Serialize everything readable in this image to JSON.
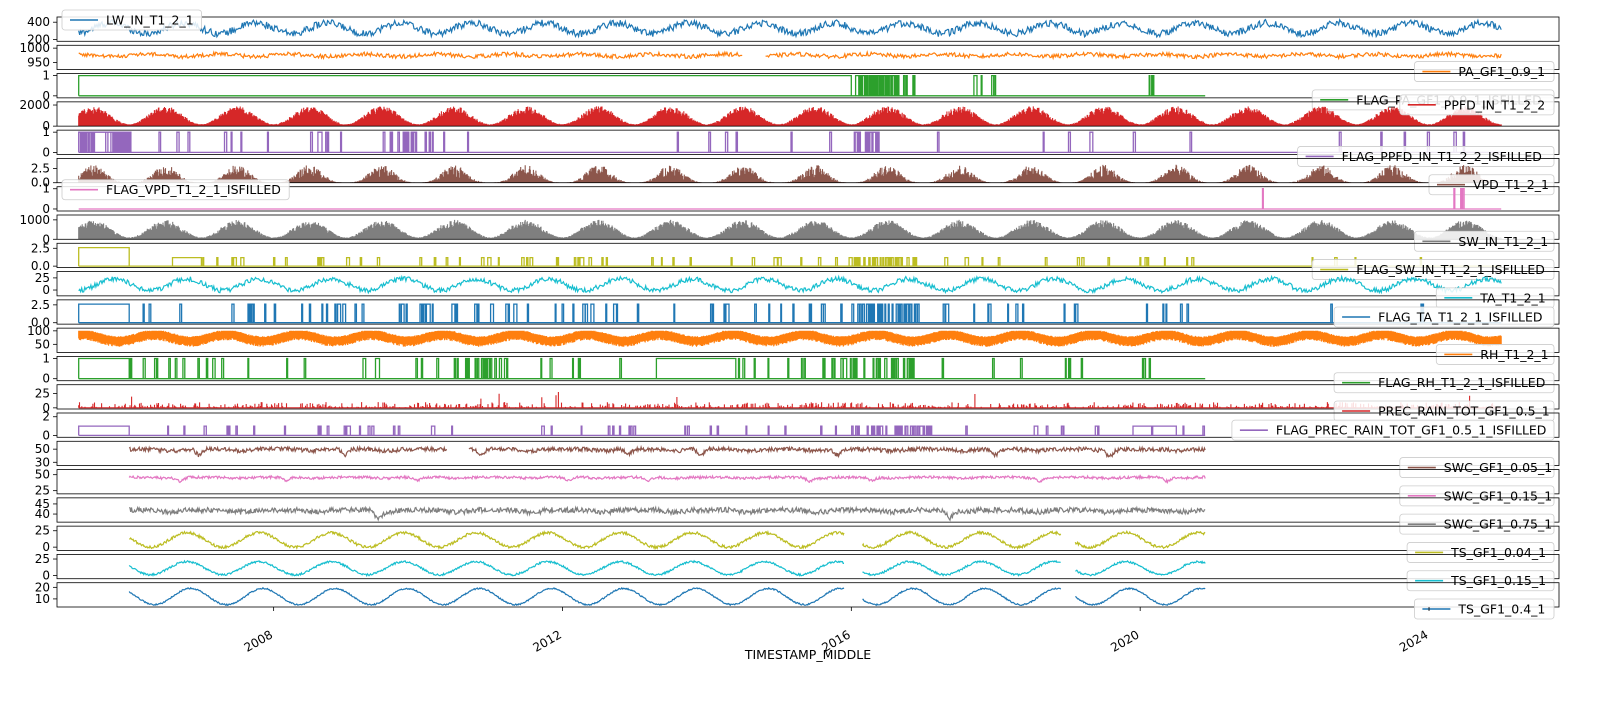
{
  "chart_data": {
    "type": "line",
    "xlabel": "TIMESTAMP_MIDDLE",
    "x_range": [
      "2005-01-01",
      "2025-12-31"
    ],
    "x_ticks": [
      "2008",
      "2012",
      "2016",
      "2020",
      "2024"
    ],
    "legend_placement": "per-panel",
    "grid": false,
    "panels": [
      {
        "name": "LW_IN_T1_2_1",
        "color": "#1f77b4",
        "legend": "top-left",
        "yticks": [
          {
            "v": 200,
            "t": "200"
          },
          {
            "v": 400,
            "t": "400"
          }
        ],
        "ylim": [
          180,
          460
        ],
        "start": 2005.3,
        "end": 2025.0,
        "kind": "cont",
        "base": 330,
        "season": 60,
        "noise": 40,
        "phase": 0.5,
        "gaps": []
      },
      {
        "name": "PA_GF1_0.9_1",
        "color": "#ff7f0e",
        "legend": "bottom-right",
        "yticks": [
          {
            "v": 950,
            "t": "950"
          },
          {
            "v": 1000,
            "t": "1000"
          }
        ],
        "ylim": [
          925,
          1010
        ],
        "start": 2005.3,
        "end": 2025.0,
        "kind": "cont",
        "base": 975,
        "season": 4,
        "noise": 7,
        "phase": 0,
        "gaps": [
          [
            2014.5,
            2014.8
          ]
        ]
      },
      {
        "name": "FLAG_PA_GF1_0.9_1_ISFILLED",
        "color": "#2ca02c",
        "legend": "bottom-right",
        "yticks": [
          {
            "v": 0,
            "t": "0"
          },
          {
            "v": 1,
            "t": "1"
          }
        ],
        "ylim": [
          -0.1,
          1.1
        ],
        "start": 2005.3,
        "end": 2020.9,
        "kind": "flag",
        "segments": [
          [
            2005.3,
            2016.0,
            1
          ]
        ],
        "spikes": [
          [
            2016.0,
            2016.9,
            40
          ],
          [
            2017.6,
            2018.0,
            4
          ],
          [
            2020.0,
            2020.3,
            3
          ]
        ],
        "amp": 1
      },
      {
        "name": "PPFD_IN_T1_2_2",
        "color": "#d62728",
        "legend": "top-right",
        "yticks": [
          {
            "v": 0,
            "t": "0"
          },
          {
            "v": 2000,
            "t": "2000"
          }
        ],
        "ylim": [
          0,
          2300
        ],
        "start": 2005.3,
        "end": 2025.0,
        "kind": "fill",
        "peak": 1900
      },
      {
        "name": "FLAG_PPFD_IN_T1_2_2_ISFILLED",
        "color": "#9467bd",
        "legend": "bottom-right",
        "yticks": [
          {
            "v": 0,
            "t": "0"
          },
          {
            "v": 1,
            "t": "1"
          }
        ],
        "ylim": [
          -0.1,
          1.1
        ],
        "start": 2005.3,
        "end": 2025.0,
        "kind": "flag",
        "segments": [
          [
            2005.3,
            2006.0,
            1
          ]
        ],
        "spikes": [
          [
            2005.3,
            2006.0,
            30
          ],
          [
            2006.0,
            2016.0,
            22
          ],
          [
            2009.5,
            2010.2,
            14
          ],
          [
            2016.0,
            2016.4,
            14
          ],
          [
            2016.4,
            2021.0,
            6
          ],
          [
            2021.0,
            2025.0,
            6
          ]
        ],
        "amp": 1
      },
      {
        "name": "VPD_T1_2_1",
        "color": "#8c564b",
        "legend": "bottom-right",
        "yticks": [
          {
            "v": 0,
            "t": "0.0"
          },
          {
            "v": 2.5,
            "t": "2.5"
          }
        ],
        "ylim": [
          0,
          4.3
        ],
        "start": 2005.3,
        "end": 2025.0,
        "kind": "fillnoisy",
        "peak": 3.2
      },
      {
        "name": "FLAG_VPD_T1_2_1_ISFILLED",
        "color": "#e377c2",
        "legend": "top-left",
        "yticks": [
          {
            "v": 0,
            "t": "0"
          },
          {
            "v": 1,
            "t": "1"
          }
        ],
        "ylim": [
          -0.1,
          1.1
        ],
        "start": 2005.3,
        "end": 2025.0,
        "kind": "flag",
        "segments": [],
        "spikes": [
          [
            2021.6,
            2021.7,
            1
          ],
          [
            2024.3,
            2024.5,
            3
          ]
        ],
        "amp": 1
      },
      {
        "name": "SW_IN_T1_2_1",
        "color": "#7f7f7f",
        "legend": "bottom-right",
        "yticks": [
          {
            "v": 0,
            "t": "0"
          },
          {
            "v": 1000,
            "t": "1000"
          }
        ],
        "ylim": [
          0,
          1250
        ],
        "start": 2005.3,
        "end": 2025.0,
        "kind": "fill",
        "peak": 1000
      },
      {
        "name": "FLAG_SW_IN_T1_2_1_ISFILLED",
        "color": "#bcbd22",
        "legend": "bottom-right",
        "yticks": [
          {
            "v": 0,
            "t": "0.0"
          },
          {
            "v": 2.5,
            "t": "2.5"
          }
        ],
        "ylim": [
          -0.2,
          3.2
        ],
        "start": 2005.3,
        "end": 2025.0,
        "kind": "flag",
        "segments": [
          [
            2005.3,
            2006.0,
            2.6
          ],
          [
            2006.6,
            2007.0,
            1.2
          ]
        ],
        "spikes": [
          [
            2007.0,
            2016.0,
            45
          ],
          [
            2016.0,
            2016.9,
            30
          ],
          [
            2016.9,
            2021.0,
            14
          ],
          [
            2021.0,
            2025.0,
            4
          ]
        ],
        "amp": 1.2
      },
      {
        "name": "TA_T1_2_1",
        "color": "#17becf",
        "legend": "bottom-right",
        "yticks": [
          {
            "v": 0,
            "t": "0"
          },
          {
            "v": 25,
            "t": "25"
          }
        ],
        "ylim": [
          -12,
          38
        ],
        "start": 2005.3,
        "end": 2025.0,
        "kind": "cont",
        "base": 11,
        "season": 12,
        "noise": 5,
        "phase": 0.55,
        "gaps": []
      },
      {
        "name": "FLAG_TA_T1_2_1_ISFILLED",
        "color": "#1f77b4",
        "legend": "right",
        "yticks": [
          {
            "v": 0,
            "t": "0.0"
          },
          {
            "v": 2.5,
            "t": "2.5"
          }
        ],
        "ylim": [
          -0.2,
          3.2
        ],
        "start": 2005.3,
        "end": 2025.0,
        "kind": "flag",
        "segments": [
          [
            2005.3,
            2006.0,
            2.6
          ]
        ],
        "spikes": [
          [
            2006.0,
            2016.0,
            60
          ],
          [
            2016.0,
            2016.9,
            35
          ],
          [
            2016.9,
            2020.9,
            16
          ],
          [
            2021.5,
            2025.0,
            3
          ]
        ],
        "amp": 2.6
      },
      {
        "name": "RH_T1_2_1",
        "color": "#ff7f0e",
        "legend": "bottom-right",
        "yticks": [
          {
            "v": 50,
            "t": "50"
          },
          {
            "v": 100,
            "t": "100"
          }
        ],
        "ylim": [
          20,
          110
        ],
        "start": 2005.3,
        "end": 2025.0,
        "kind": "band",
        "base": 75,
        "season": 12,
        "noise": 12
      },
      {
        "name": "FLAG_RH_T1_2_1_ISFILLED",
        "color": "#2ca02c",
        "legend": "bottom-right",
        "yticks": [
          {
            "v": 0,
            "t": "0"
          },
          {
            "v": 1,
            "t": "1"
          }
        ],
        "ylim": [
          -0.1,
          1.1
        ],
        "start": 2005.3,
        "end": 2020.9,
        "kind": "flag",
        "segments": [
          [
            2005.3,
            2006.0,
            1
          ],
          [
            2013.3,
            2014.4,
            1
          ]
        ],
        "spikes": [
          [
            2006.0,
            2013.3,
            32
          ],
          [
            2010.5,
            2011.0,
            14
          ],
          [
            2014.4,
            2016.0,
            14
          ],
          [
            2016.0,
            2016.9,
            22
          ],
          [
            2016.9,
            2020.9,
            10
          ]
        ],
        "amp": 1
      },
      {
        "name": "PREC_RAIN_TOT_GF1_0.5_1",
        "color": "#d62728",
        "legend": "bottom-right",
        "yticks": [
          {
            "v": 0,
            "t": "0"
          },
          {
            "v": 25,
            "t": "25"
          }
        ],
        "ylim": [
          -2,
          40
        ],
        "start": 2005.3,
        "end": 2025.0,
        "kind": "rain",
        "peak": 30
      },
      {
        "name": "FLAG_PREC_RAIN_TOT_GF1_0.5_1_ISFILLED",
        "color": "#9467bd",
        "legend": "right",
        "yticks": [
          {
            "v": 0,
            "t": "0"
          },
          {
            "v": 2,
            "t": "2"
          }
        ],
        "ylim": [
          -0.2,
          2.4
        ],
        "start": 2005.3,
        "end": 2020.9,
        "kind": "flag",
        "segments": [
          [
            2005.3,
            2006.0,
            1
          ],
          [
            2019.9,
            2020.5,
            1
          ]
        ],
        "spikes": [
          [
            2006.0,
            2016.0,
            38
          ],
          [
            2016.0,
            2017.1,
            34
          ],
          [
            2017.1,
            2020.9,
            10
          ]
        ],
        "amp": 1
      },
      {
        "name": "SWC_GF1_0.05_1",
        "color": "#8c564b",
        "legend": "bottom-right",
        "yticks": [
          {
            "v": 30,
            "t": "30"
          },
          {
            "v": 50,
            "t": "50"
          }
        ],
        "ylim": [
          25,
          62
        ],
        "start": 2006.0,
        "end": 2020.9,
        "kind": "swc",
        "base": 50,
        "noise": 4,
        "dips": 8,
        "gaps": [
          [
            2010.4,
            2010.7
          ]
        ]
      },
      {
        "name": "SWC_GF1_0.15_1",
        "color": "#e377c2",
        "legend": "bottom-right",
        "yticks": [
          {
            "v": 25,
            "t": "25"
          },
          {
            "v": 50,
            "t": "50"
          }
        ],
        "ylim": [
          20,
          58
        ],
        "start": 2006.0,
        "end": 2020.9,
        "kind": "swc",
        "base": 46,
        "noise": 2.5,
        "dips": 9,
        "gaps": []
      },
      {
        "name": "SWC_GF1_0.75_1",
        "color": "#7f7f7f",
        "legend": "bottom-right",
        "yticks": [
          {
            "v": 40,
            "t": "40"
          },
          {
            "v": 45,
            "t": "45"
          }
        ],
        "ylim": [
          36,
          48
        ],
        "start": 2006.0,
        "end": 2020.9,
        "kind": "swc",
        "base": 42,
        "noise": 1.6,
        "dips": 2,
        "gaps": []
      },
      {
        "name": "TS_GF1_0.04_1",
        "color": "#bcbd22",
        "legend": "bottom-right",
        "yticks": [
          {
            "v": 0,
            "t": "0"
          },
          {
            "v": 25,
            "t": "25"
          }
        ],
        "ylim": [
          -5,
          32
        ],
        "start": 2006.0,
        "end": 2020.9,
        "kind": "cont",
        "base": 11,
        "season": 11,
        "noise": 2,
        "phase": 0.55,
        "gaps": [
          [
            2015.9,
            2016.15
          ],
          [
            2018.9,
            2019.1
          ]
        ]
      },
      {
        "name": "TS_GF1_0.15_1",
        "color": "#17becf",
        "legend": "bottom-right",
        "yticks": [
          {
            "v": 0,
            "t": "0"
          },
          {
            "v": 25,
            "t": "25"
          }
        ],
        "ylim": [
          -5,
          32
        ],
        "start": 2006.0,
        "end": 2020.9,
        "kind": "cont",
        "base": 11,
        "season": 10,
        "noise": 1.5,
        "phase": 0.55,
        "gaps": [
          [
            2015.9,
            2016.15
          ],
          [
            2018.9,
            2019.1
          ]
        ]
      },
      {
        "name": "TS_GF1_0.4_1",
        "color": "#1f77b4",
        "legend": "bottom-right",
        "yticks": [
          {
            "v": 10,
            "t": "10"
          },
          {
            "v": 20,
            "t": "20"
          }
        ],
        "ylim": [
          3,
          24
        ],
        "start": 2006.0,
        "end": 2020.9,
        "kind": "cont",
        "base": 12,
        "season": 7,
        "noise": 0.6,
        "phase": 0.6,
        "gaps": [
          [
            2015.9,
            2016.15
          ],
          [
            2018.9,
            2019.1
          ]
        ]
      }
    ]
  }
}
